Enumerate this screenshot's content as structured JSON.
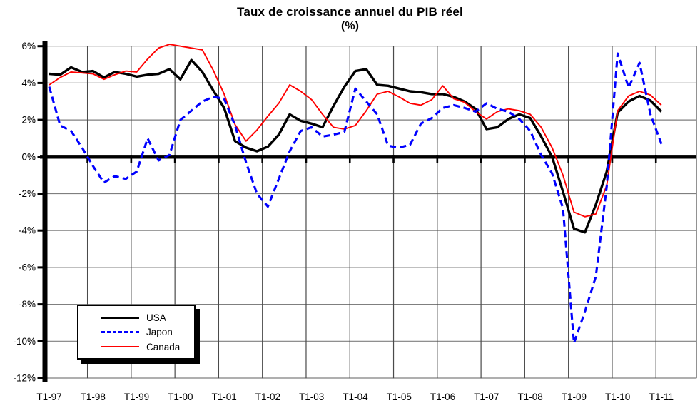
{
  "chart_data": {
    "type": "line",
    "title": "Taux de croissance annuel du PIB réel",
    "subtitle": "(%)",
    "x_axis": {
      "frequency": "quarterly",
      "first_point": "T1-97",
      "last_point": "T1-11",
      "n_points": 57,
      "tick_labels": [
        "T1-97",
        "T1-98",
        "T1-99",
        "T1-00",
        "T1-01",
        "T1-02",
        "T1-03",
        "T1-04",
        "T1-05",
        "T1-06",
        "T1-07",
        "T1-08",
        "T1-09",
        "T1-10",
        "T1-11"
      ],
      "points_per_tick": 4
    },
    "y_axis": {
      "unit": "%",
      "ylim": [
        -12,
        6
      ],
      "tick_values": [
        6,
        4,
        2,
        0,
        -2,
        -4,
        -6,
        -8,
        -10,
        -12
      ],
      "tick_labels": [
        "6%",
        "4%",
        "2%",
        "0%",
        "-2%",
        "-4%",
        "-6%",
        "-8%",
        "-10%",
        "-12%"
      ]
    },
    "grid": "on",
    "zero_line": "thick-black",
    "legend_position": "inside-bottom-left",
    "colors": {
      "background": "#ffffff",
      "axis": "#000000",
      "h_gridline": "#7f7f7f",
      "v_gridline": "#4a4a4a"
    },
    "series": [
      {
        "name": "USA",
        "color": "#000000",
        "line_style": "solid",
        "line_width": 3.4,
        "values": [
          4.5,
          4.45,
          4.85,
          4.6,
          4.65,
          4.3,
          4.6,
          4.5,
          4.35,
          4.45,
          4.5,
          4.75,
          4.2,
          5.25,
          4.6,
          3.6,
          2.65,
          0.85,
          0.5,
          0.3,
          0.55,
          1.2,
          2.3,
          1.95,
          1.8,
          1.6,
          2.75,
          3.8,
          4.65,
          4.75,
          3.9,
          3.85,
          3.7,
          3.55,
          3.5,
          3.4,
          3.4,
          3.25,
          3.0,
          2.6,
          1.5,
          1.6,
          2.05,
          2.3,
          2.1,
          1.1,
          0.0,
          -1.9,
          -3.9,
          -4.1,
          -2.6,
          -0.8,
          2.4,
          3.0,
          3.3,
          3.05,
          2.45
        ]
      },
      {
        "name": "Japon",
        "color": "#0000ff",
        "line_style": "dashed",
        "line_width": 3.1,
        "values": [
          3.8,
          1.7,
          1.4,
          0.5,
          -0.5,
          -1.4,
          -1.05,
          -1.2,
          -0.8,
          1.0,
          -0.2,
          0.1,
          2.0,
          2.5,
          3.0,
          3.25,
          3.15,
          1.7,
          -0.3,
          -2.0,
          -2.7,
          -1.2,
          0.3,
          1.4,
          1.6,
          1.1,
          1.2,
          1.35,
          3.7,
          3.0,
          2.3,
          0.6,
          0.5,
          0.65,
          1.8,
          2.1,
          2.65,
          2.8,
          2.65,
          2.45,
          2.9,
          2.6,
          2.45,
          2.05,
          1.4,
          0.1,
          -0.9,
          -2.8,
          -10.1,
          -8.4,
          -6.5,
          -1.6,
          5.6,
          3.75,
          5.1,
          2.3,
          0.7
        ]
      },
      {
        "name": "Canada",
        "color": "#ff0000",
        "line_style": "solid",
        "line_width": 1.9,
        "values": [
          3.9,
          4.3,
          4.6,
          4.55,
          4.5,
          4.2,
          4.45,
          4.65,
          4.6,
          5.3,
          5.9,
          6.1,
          6.0,
          5.9,
          5.8,
          4.7,
          3.4,
          1.75,
          0.85,
          1.45,
          2.2,
          2.9,
          3.9,
          3.55,
          3.1,
          2.3,
          1.6,
          1.5,
          1.7,
          2.5,
          3.4,
          3.55,
          3.25,
          2.9,
          2.8,
          3.1,
          3.85,
          3.15,
          2.95,
          2.45,
          2.05,
          2.45,
          2.6,
          2.5,
          2.3,
          1.6,
          0.5,
          -1.0,
          -3.0,
          -3.25,
          -3.1,
          -1.55,
          2.5,
          3.3,
          3.55,
          3.35,
          2.8
        ]
      }
    ]
  }
}
